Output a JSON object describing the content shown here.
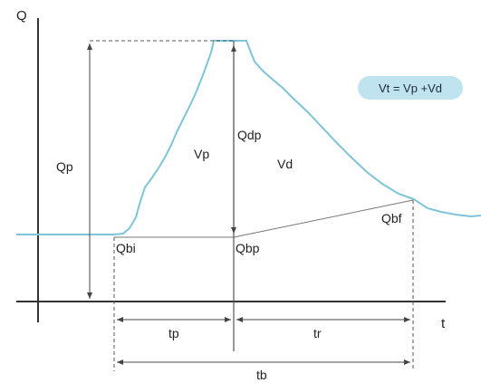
{
  "axes": {
    "y_label": "Q",
    "x_label": "t"
  },
  "labels": {
    "qp": "Qp",
    "vp": "Vp",
    "vd": "Vd",
    "qdp": "Qdp",
    "qbi": "Qbi",
    "qbp": "Qbp",
    "qbf": "Qbf",
    "tp": "tp",
    "tr": "tr",
    "tb": "tb"
  },
  "equation": "Vt = Vp +Vd",
  "colors": {
    "hydrograph": "#7ec4d8",
    "equation_bg": "#bfe3ef",
    "axis": "#333333",
    "guide": "#555555"
  }
}
